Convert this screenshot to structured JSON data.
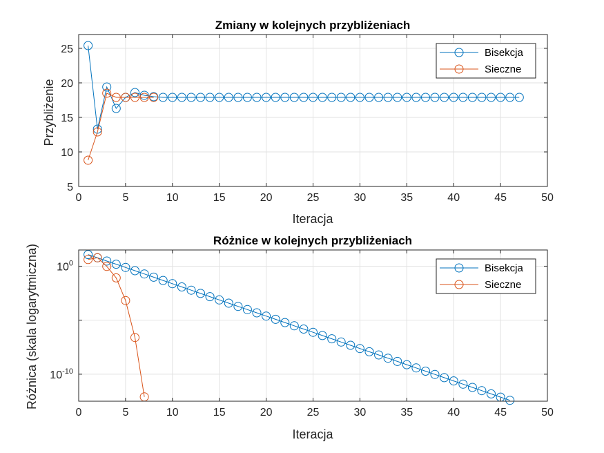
{
  "colors": {
    "bisection": "#0072BD",
    "secant": "#D95319",
    "grid": "#e2e2e2",
    "axis": "#262626"
  },
  "chart_data": [
    {
      "type": "line",
      "title": "Zmiany w kolejnych przybliżeniach",
      "xlabel": "Iteracja",
      "ylabel": "Przybliżenie",
      "xlim": [
        0,
        50
      ],
      "ylim": [
        5,
        27
      ],
      "xticks": [
        0,
        5,
        10,
        15,
        20,
        25,
        30,
        35,
        40,
        45,
        50
      ],
      "yticks": [
        5,
        10,
        15,
        20,
        25
      ],
      "xtick_labels": [
        "0",
        "5",
        "10",
        "15",
        "20",
        "25",
        "30",
        "35",
        "40",
        "45",
        "50"
      ],
      "ytick_labels": [
        "5",
        "10",
        "15",
        "20",
        "25"
      ],
      "grid": true,
      "legend_position": "top-right",
      "series": [
        {
          "name": "Bisekcja",
          "x": [
            1,
            2,
            3,
            4,
            5,
            6,
            7,
            8,
            9,
            10,
            11,
            12,
            13,
            14,
            15,
            16,
            17,
            18,
            19,
            20,
            21,
            22,
            23,
            24,
            25,
            26,
            27,
            28,
            29,
            30,
            31,
            32,
            33,
            34,
            35,
            36,
            37,
            38,
            39,
            40,
            41,
            42,
            43,
            44,
            45,
            46,
            47
          ],
          "y": [
            25.4,
            13.3,
            19.4,
            16.3,
            17.9,
            18.6,
            18.2,
            18.0,
            17.9,
            17.9,
            17.9,
            17.9,
            17.9,
            17.9,
            17.9,
            17.9,
            17.9,
            17.9,
            17.9,
            17.9,
            17.9,
            17.9,
            17.9,
            17.9,
            17.9,
            17.9,
            17.9,
            17.9,
            17.9,
            17.9,
            17.9,
            17.9,
            17.9,
            17.9,
            17.9,
            17.9,
            17.9,
            17.9,
            17.9,
            17.9,
            17.9,
            17.9,
            17.9,
            17.9,
            17.9,
            17.9,
            17.9
          ]
        },
        {
          "name": "Sieczne",
          "x": [
            1,
            2,
            3,
            4,
            5,
            6,
            7,
            8
          ],
          "y": [
            8.8,
            12.9,
            18.5,
            17.9,
            17.9,
            17.9,
            17.9,
            17.9
          ]
        }
      ]
    },
    {
      "type": "line",
      "title": "Różnice w kolejnych przybliżeniach",
      "xlabel": "Iteracja",
      "ylabel": "Różnica (skala logarytmiczna)",
      "yscale": "log",
      "xlim": [
        0,
        50
      ],
      "ylim_log10": [
        -12.5,
        1.5
      ],
      "xticks": [
        0,
        5,
        10,
        15,
        20,
        25,
        30,
        35,
        40,
        45,
        50
      ],
      "yticks_log10": [
        -10,
        -5,
        0
      ],
      "xtick_labels": [
        "0",
        "5",
        "10",
        "15",
        "20",
        "25",
        "30",
        "35",
        "40",
        "45",
        "50"
      ],
      "ytick_labels": [
        {
          "base": "10",
          "exp": "-10"
        },
        {
          "base": "",
          "exp": ""
        },
        {
          "base": "10",
          "exp": "0"
        }
      ],
      "grid": true,
      "legend_position": "top-right",
      "series": [
        {
          "name": "Bisekcja",
          "x": [
            1,
            2,
            3,
            4,
            5,
            6,
            7,
            8,
            9,
            10,
            11,
            12,
            13,
            14,
            15,
            16,
            17,
            18,
            19,
            20,
            21,
            22,
            23,
            24,
            25,
            26,
            27,
            28,
            29,
            30,
            31,
            32,
            33,
            34,
            35,
            36,
            37,
            38,
            39,
            40,
            41,
            42,
            43,
            44,
            45,
            46
          ],
          "log10_y": [
            1.08,
            0.78,
            0.48,
            0.18,
            -0.12,
            -0.42,
            -0.72,
            -1.02,
            -1.32,
            -1.62,
            -1.92,
            -2.22,
            -2.52,
            -2.82,
            -3.12,
            -3.42,
            -3.72,
            -4.02,
            -4.32,
            -4.62,
            -4.92,
            -5.22,
            -5.52,
            -5.82,
            -6.12,
            -6.42,
            -6.72,
            -7.02,
            -7.32,
            -7.62,
            -7.92,
            -8.22,
            -8.52,
            -8.82,
            -9.12,
            -9.42,
            -9.72,
            -10.02,
            -10.32,
            -10.62,
            -10.92,
            -11.22,
            -11.52,
            -11.82,
            -12.12,
            -12.42
          ]
        },
        {
          "name": "Sieczne",
          "x": [
            1,
            2,
            3,
            4,
            5,
            6,
            7
          ],
          "log10_y": [
            0.62,
            0.78,
            -0.02,
            -1.08,
            -3.18,
            -6.6,
            -12.1
          ]
        }
      ]
    }
  ]
}
